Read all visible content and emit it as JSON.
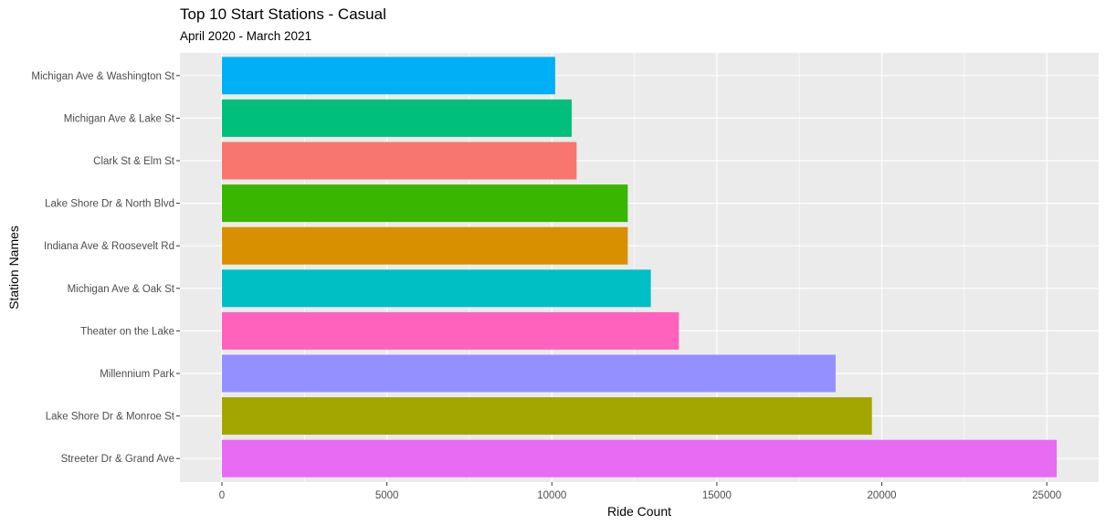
{
  "chart_data": {
    "type": "bar",
    "orientation": "horizontal",
    "title": "Top 10 Start Stations - Casual",
    "subtitle": "April 2020 - March 2021",
    "xlabel": "Ride Count",
    "ylabel": "Station Names",
    "xlim": [
      0,
      26000
    ],
    "x_ticks": [
      0,
      5000,
      10000,
      15000,
      20000,
      25000
    ],
    "grid": true,
    "legend": "none",
    "categories": [
      "Michigan Ave & Washington St",
      "Michigan Ave & Lake St",
      "Clark St & Elm St",
      "Lake Shore Dr & North Blvd",
      "Indiana Ave & Roosevelt Rd",
      "Michigan Ave & Oak St",
      "Theater on the Lake",
      "Millennium Park",
      "Lake Shore Dr & Monroe St",
      "Streeter Dr & Grand Ave"
    ],
    "values": [
      10100,
      10600,
      10750,
      12300,
      12300,
      13000,
      13850,
      18600,
      19700,
      25300
    ],
    "colors": [
      "#00B0F6",
      "#00BF7D",
      "#F8766D",
      "#39B600",
      "#D89000",
      "#00BFC4",
      "#FF62BC",
      "#9590FF",
      "#A3A500",
      "#E76BF3"
    ]
  }
}
